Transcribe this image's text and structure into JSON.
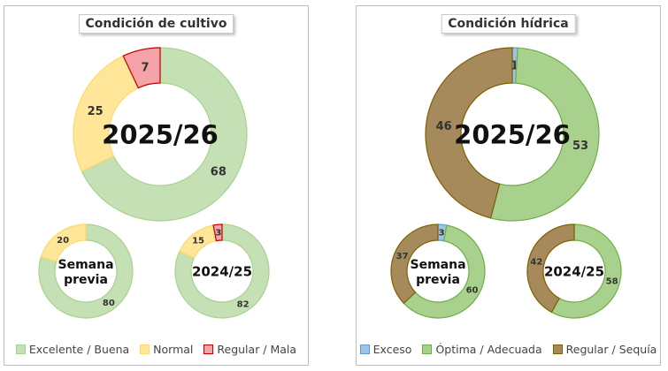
{
  "colors": {
    "excelente_buena": "#c5e0b4",
    "normal": "#ffe699",
    "regular_mala": "#f4a3a8",
    "exceso": "#9dc3e6",
    "optima_adecuada": "#a9d18e",
    "regular_sequia": "#a68a5b"
  },
  "chart_data": [
    {
      "type": "donut-group",
      "title": "Condición de cultivo",
      "legend": [
        "Excelente / Buena",
        "Normal",
        "Regular / Mala"
      ],
      "donuts": [
        {
          "label": "2025/26",
          "values": [
            68,
            25,
            7
          ]
        },
        {
          "label": "Semana previa",
          "values": [
            80,
            20,
            0
          ]
        },
        {
          "label": "2024/25",
          "values": [
            82,
            15,
            3
          ]
        }
      ]
    },
    {
      "type": "donut-group",
      "title": "Condición hídrica",
      "legend": [
        "Exceso",
        "Óptima / Adecuada",
        "Regular / Sequía"
      ],
      "donuts": [
        {
          "label": "2025/26",
          "values": [
            1,
            53,
            46
          ]
        },
        {
          "label": "Semana previa",
          "values": [
            3,
            60,
            37
          ]
        },
        {
          "label": "2024/25",
          "values": [
            0,
            58,
            42
          ]
        }
      ]
    }
  ]
}
